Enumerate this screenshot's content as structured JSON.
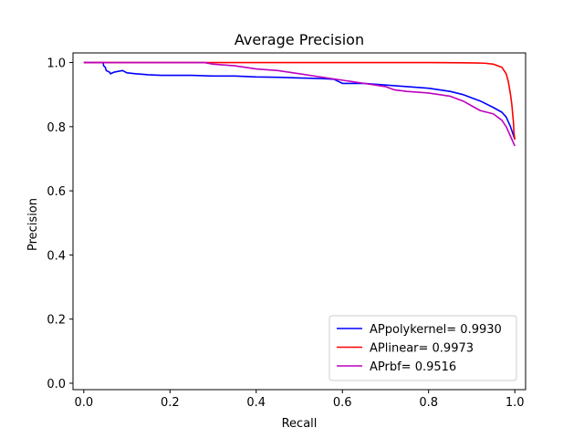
{
  "chart_data": {
    "type": "line",
    "title": "Average Precision",
    "xlabel": "Recall",
    "ylabel": "Precision",
    "xlim": [
      -0.025,
      1.025
    ],
    "ylim": [
      -0.02,
      1.03
    ],
    "xticks": [
      0.0,
      0.2,
      0.4,
      0.6,
      0.8,
      1.0
    ],
    "yticks": [
      0.0,
      0.2,
      0.4,
      0.6,
      0.8,
      1.0
    ],
    "xtick_labels": [
      "0.0",
      "0.2",
      "0.4",
      "0.6",
      "0.8",
      "1.0"
    ],
    "ytick_labels": [
      "0.0",
      "0.2",
      "0.4",
      "0.6",
      "0.8",
      "1.0"
    ],
    "grid": false,
    "legend_position": "lower-right",
    "series": [
      {
        "name": "APpolykernel= 0.9930",
        "color": "#0000ff",
        "x": [
          0.0,
          0.045,
          0.046,
          0.05,
          0.052,
          0.06,
          0.062,
          0.07,
          0.09,
          0.1,
          0.12,
          0.15,
          0.18,
          0.2,
          0.25,
          0.3,
          0.35,
          0.4,
          0.45,
          0.5,
          0.55,
          0.58,
          0.6,
          0.65,
          0.7,
          0.75,
          0.8,
          0.85,
          0.88,
          0.9,
          0.92,
          0.95,
          0.97,
          0.98,
          0.99,
          0.995,
          1.0
        ],
        "y": [
          1.0,
          1.0,
          0.99,
          0.985,
          0.975,
          0.97,
          0.965,
          0.97,
          0.975,
          0.968,
          0.965,
          0.962,
          0.96,
          0.96,
          0.96,
          0.958,
          0.958,
          0.955,
          0.954,
          0.952,
          0.95,
          0.948,
          0.935,
          0.935,
          0.93,
          0.925,
          0.92,
          0.91,
          0.9,
          0.89,
          0.88,
          0.86,
          0.845,
          0.83,
          0.8,
          0.78,
          0.76
        ]
      },
      {
        "name": "APlinear= 0.9973",
        "color": "#ff0000",
        "x": [
          0.0,
          0.2,
          0.4,
          0.6,
          0.8,
          0.9,
          0.93,
          0.95,
          0.97,
          0.98,
          0.985,
          0.99,
          0.993,
          0.995,
          0.997,
          0.998,
          1.0
        ],
        "y": [
          1.0,
          1.0,
          1.0,
          1.0,
          1.0,
          0.999,
          0.998,
          0.995,
          0.985,
          0.965,
          0.94,
          0.9,
          0.87,
          0.84,
          0.81,
          0.78,
          0.76
        ]
      },
      {
        "name": "APrbf= 0.9516",
        "color": "#bf00bf",
        "x": [
          0.0,
          0.1,
          0.2,
          0.28,
          0.3,
          0.35,
          0.4,
          0.45,
          0.5,
          0.55,
          0.6,
          0.65,
          0.7,
          0.72,
          0.75,
          0.8,
          0.85,
          0.88,
          0.9,
          0.92,
          0.95,
          0.97,
          0.98,
          0.99,
          1.0
        ],
        "y": [
          1.0,
          1.0,
          1.0,
          1.0,
          0.995,
          0.99,
          0.98,
          0.975,
          0.965,
          0.955,
          0.945,
          0.935,
          0.925,
          0.915,
          0.91,
          0.905,
          0.895,
          0.88,
          0.865,
          0.85,
          0.84,
          0.82,
          0.8,
          0.77,
          0.74
        ]
      }
    ]
  }
}
